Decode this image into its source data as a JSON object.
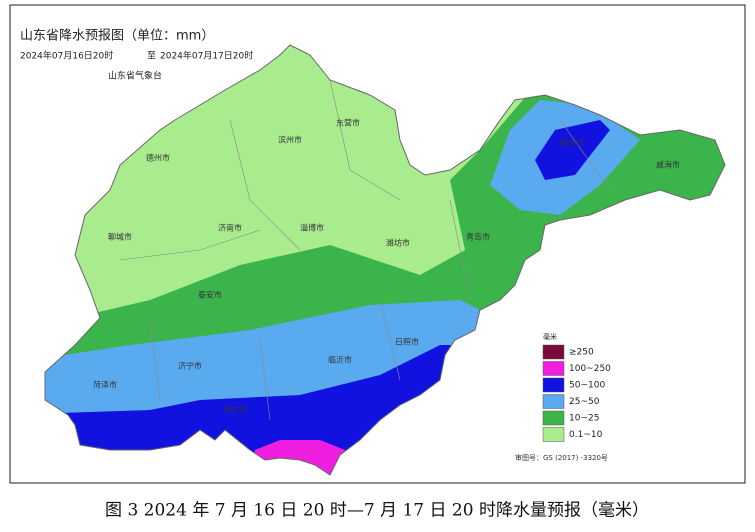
{
  "header": {
    "title": "山东省降水预报图（单位：mm）",
    "period_start": "2024年07月16日20时",
    "period_sep": "至",
    "period_end": "2024年07月17日20时",
    "agency": "山东省气象台"
  },
  "cities": [
    "东营市",
    "滨州市",
    "德州市",
    "聊城市",
    "济南市",
    "淄博市",
    "潍坊市",
    "青岛市",
    "烟台市",
    "威海市",
    "泰安市",
    "济宁市",
    "菏泽市",
    "临沂市",
    "日照市",
    "枣庄市"
  ],
  "legend": {
    "unit": "毫米",
    "items": [
      {
        "label": "≥250",
        "color": "#7a0a3a"
      },
      {
        "label": "100~250",
        "color": "#f01ee0"
      },
      {
        "label": "50~100",
        "color": "#1212e0"
      },
      {
        "label": "25~50",
        "color": "#5aaaf0"
      },
      {
        "label": "10~25",
        "color": "#3cb44c"
      },
      {
        "label": "0.1~10",
        "color": "#a8ec8e"
      }
    ]
  },
  "approval": "审图号：GS (2017) -3320号",
  "caption": "图 3 2024 年 7 月 16 日 20 时—7 月 17 日 20 时降水量预报（毫米）"
}
